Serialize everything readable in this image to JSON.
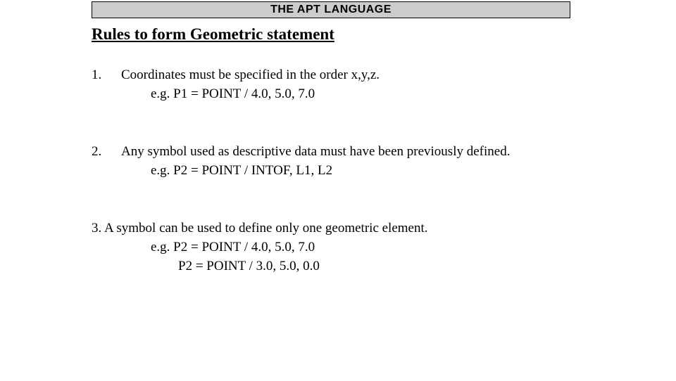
{
  "header": {
    "title": "THE APT LANGUAGE"
  },
  "section": {
    "title": "Rules to form Geometric statement"
  },
  "rules": [
    {
      "number": "1.",
      "text": "Coordinates must be specified in the order x,y,z.",
      "example": "e.g. P1 = POINT / 4.0, 5.0, 7.0"
    },
    {
      "number": "2.",
      "text": "Any symbol used as descriptive data must have been previously defined.",
      "example": "e.g. P2 = POINT / INTOF, L1, L2"
    },
    {
      "number_text": "3. A symbol can be used to define only one geometric element.",
      "example1": "e.g. P2 = POINT / 4.0, 5.0, 7.0",
      "example2": "P2 = POINT / 3.0, 5.0, 0.0"
    }
  ],
  "colors": {
    "header_bg": "#cccccc",
    "header_border": "#000000",
    "text": "#000000",
    "background": "#ffffff"
  },
  "typography": {
    "header_font": "Arial",
    "header_fontsize": 16,
    "header_weight": "bold",
    "body_font": "Times New Roman",
    "title_fontsize": 23,
    "title_weight": "bold",
    "body_fontsize": 19
  }
}
